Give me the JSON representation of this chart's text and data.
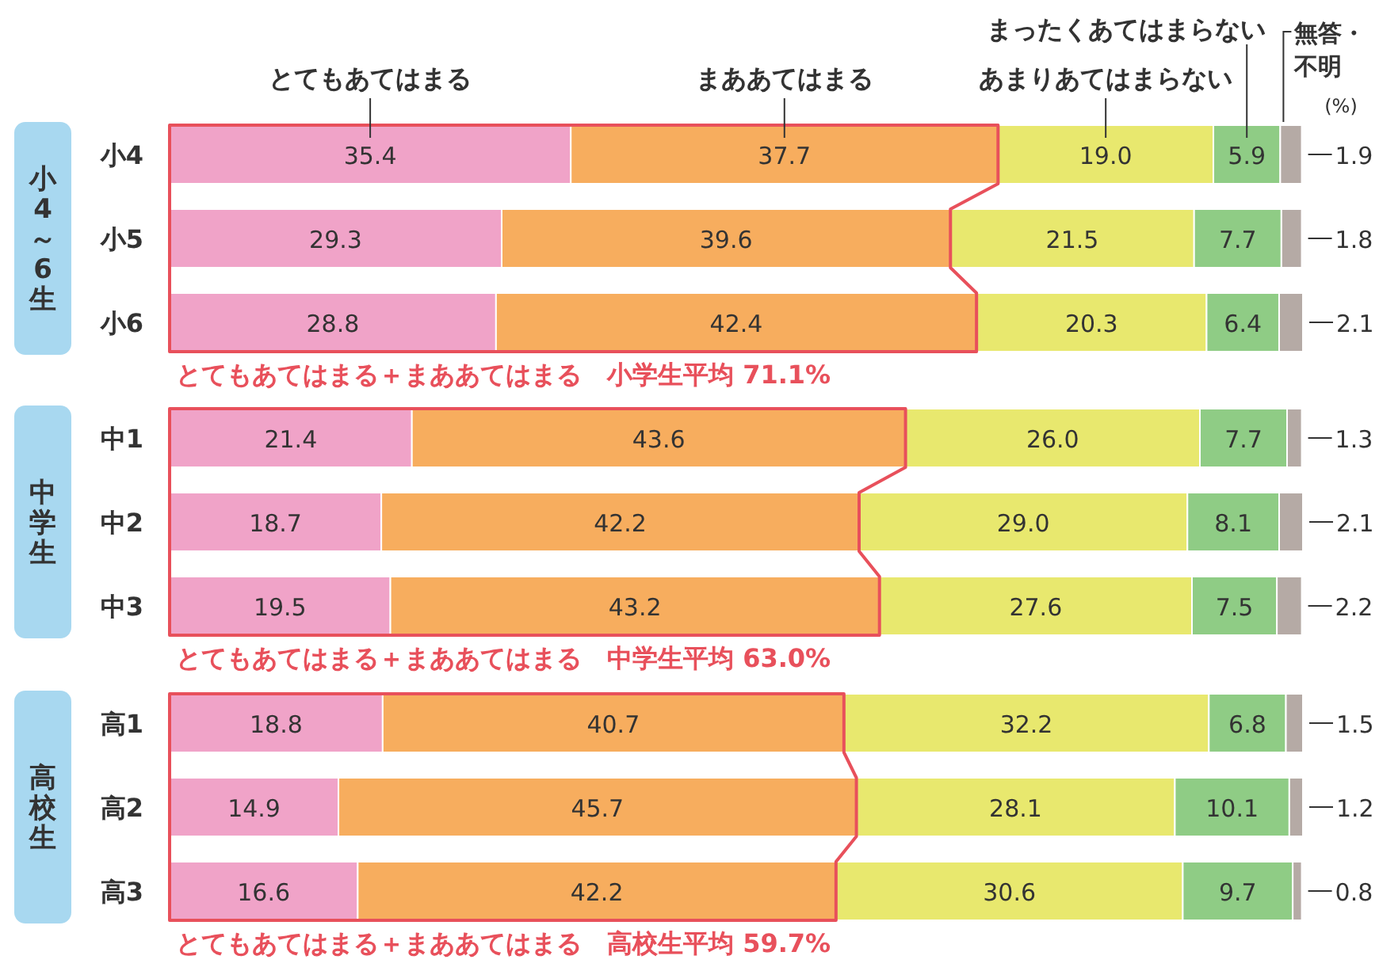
{
  "chart_data": [
    {
      "type": "bar",
      "orientation": "horizontal",
      "stacked": true,
      "legend": "top",
      "ylabel": "小4～6生",
      "categories": [
        "小4",
        "小5",
        "小6"
      ],
      "series": [
        {
          "name": "とてもあてはまる",
          "color": "#f0a3c8",
          "values": [
            35.4,
            29.3,
            28.8
          ],
          "value_labels": [
            "35.4",
            "29.3",
            "28.8"
          ]
        },
        {
          "name": "まああてはまる",
          "color": "#f7ad5e",
          "values": [
            37.7,
            39.6,
            42.4
          ],
          "value_labels": [
            "37.7",
            "39.6",
            "42.4"
          ]
        },
        {
          "name": "あまりあてはまらない",
          "color": "#e8e86e",
          "values": [
            19.0,
            21.5,
            20.3
          ],
          "value_labels": [
            "19.0",
            "21.5",
            "20.3"
          ]
        },
        {
          "name": "まったくあてはまらない",
          "color": "#8fcc85",
          "values": [
            5.9,
            7.7,
            6.4
          ],
          "value_labels": [
            "5.9",
            "7.7",
            "6.4"
          ]
        },
        {
          "name": "無答・不明",
          "color": "#b5aaa5",
          "values": [
            1.9,
            1.8,
            2.1
          ],
          "value_labels": [
            "1.9",
            "1.8",
            "2.1"
          ]
        }
      ],
      "annotations": [
        "(%)",
        "とてもあてはまる＋まああてはまる　小学生平均 71.1%"
      ]
    },
    {
      "type": "bar",
      "orientation": "horizontal",
      "stacked": true,
      "ylabel": "中学生",
      "categories": [
        "中1",
        "中2",
        "中3"
      ],
      "series": [
        {
          "color": "#f0a3c8",
          "values": [
            21.4,
            18.7,
            19.5
          ],
          "value_labels": [
            "21.4",
            "18.7",
            "19.5"
          ]
        },
        {
          "color": "#f7ad5e",
          "values": [
            43.6,
            42.2,
            43.2
          ],
          "value_labels": [
            "43.6",
            "42.2",
            "43.2"
          ]
        },
        {
          "color": "#e8e86e",
          "values": [
            26.0,
            29.0,
            27.6
          ],
          "value_labels": [
            "26.0",
            "29.0",
            "27.6"
          ]
        },
        {
          "color": "#8fcc85",
          "values": [
            7.7,
            8.1,
            7.5
          ],
          "value_labels": [
            "7.7",
            "8.1",
            "7.5"
          ]
        },
        {
          "color": "#b5aaa5",
          "values": [
            1.3,
            2.1,
            2.2
          ],
          "value_labels": [
            "1.3",
            "2.1",
            "2.2"
          ]
        }
      ],
      "annotations": [
        "とてもあてはまる＋まああてはまる　中学生平均 63.0%"
      ]
    },
    {
      "type": "bar",
      "orientation": "horizontal",
      "stacked": true,
      "ylabel": "高校生",
      "categories": [
        "高1",
        "高2",
        "高3"
      ],
      "series": [
        {
          "color": "#f0a3c8",
          "values": [
            18.8,
            14.9,
            16.6
          ],
          "value_labels": [
            "18.8",
            "14.9",
            "16.6"
          ]
        },
        {
          "color": "#f7ad5e",
          "values": [
            40.7,
            45.7,
            42.2
          ],
          "value_labels": [
            "40.7",
            "45.7",
            "42.2"
          ]
        },
        {
          "color": "#e8e86e",
          "values": [
            32.2,
            28.1,
            30.6
          ],
          "value_labels": [
            "32.2",
            "28.1",
            "30.6"
          ]
        },
        {
          "color": "#8fcc85",
          "values": [
            6.8,
            10.1,
            9.7
          ],
          "value_labels": [
            "6.8",
            "10.1",
            "9.7"
          ]
        },
        {
          "color": "#b5aaa5",
          "values": [
            1.5,
            1.2,
            0.8
          ],
          "value_labels": [
            "1.5",
            "1.2",
            "0.8"
          ]
        }
      ],
      "annotations": [
        "とてもあてはまる＋まああてはまる　高校生平均 59.7%"
      ]
    }
  ]
}
